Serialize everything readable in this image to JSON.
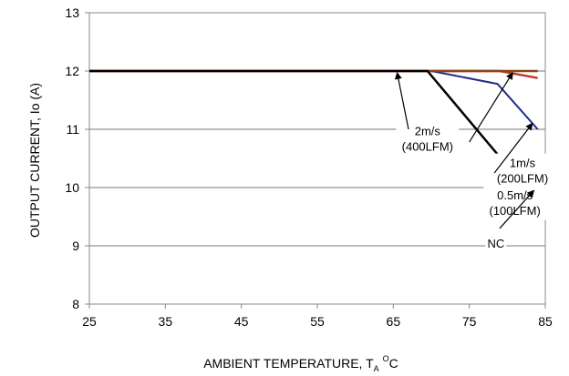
{
  "chart_data": {
    "type": "line",
    "xlabel": "AMBIENT TEMPERATURE, T",
    "xlabel_sub": "A",
    "xlabel_sup": "O",
    "xlabel_unit": "C",
    "ylabel": "OUTPUT CURRENT, Io  (A)",
    "xlim": [
      25,
      85
    ],
    "ylim": [
      8,
      13
    ],
    "x_ticks": [
      25,
      35,
      45,
      55,
      65,
      75,
      85
    ],
    "y_ticks": [
      8,
      9,
      10,
      11,
      12,
      13
    ],
    "grid": "horizontal",
    "series": [
      {
        "color": "#c0392b",
        "width": 2.5,
        "x": [
          25,
          79,
          84
        ],
        "y": [
          12,
          12,
          11.88
        ]
      },
      {
        "color": "#1f2d8c",
        "width": 2,
        "x": [
          25,
          70,
          78.7,
          84
        ],
        "y": [
          12,
          12,
          11.78,
          11
        ]
      },
      {
        "color": "#8b4513",
        "width": 2.5,
        "x": [
          25,
          84
        ],
        "y": [
          12,
          12
        ]
      },
      {
        "color": "#000000",
        "width": 2.5,
        "x": [
          25,
          69.5,
          84
        ],
        "y": [
          12,
          12,
          9.75
        ]
      }
    ],
    "annotations": [
      {
        "lines": [
          "2m/s",
          "(400LFM)"
        ],
        "text_x": 69.5,
        "text_y": 10.9,
        "arrow_from": [
          67,
          11.0
        ],
        "arrow_to": [
          65.5,
          11.97
        ]
      },
      {
        "lines": [
          "1m/s",
          "(200LFM)"
        ],
        "text_x": 82,
        "text_y": 10.35,
        "arrow_from": [
          75,
          10.78
        ],
        "arrow_to": [
          80.7,
          11.97
        ]
      },
      {
        "lines": [
          "0.5m/s",
          "(100LFM)"
        ],
        "text_x": 81,
        "text_y": 9.8,
        "arrow_from": [
          78.3,
          10.25
        ],
        "arrow_to": [
          83.3,
          11.1
        ]
      },
      {
        "lines": [
          "NC"
        ],
        "text_x": 78.5,
        "text_y": 8.97,
        "arrow_from": [
          79,
          9.3
        ],
        "arrow_to": [
          83.5,
          9.95
        ]
      }
    ]
  }
}
